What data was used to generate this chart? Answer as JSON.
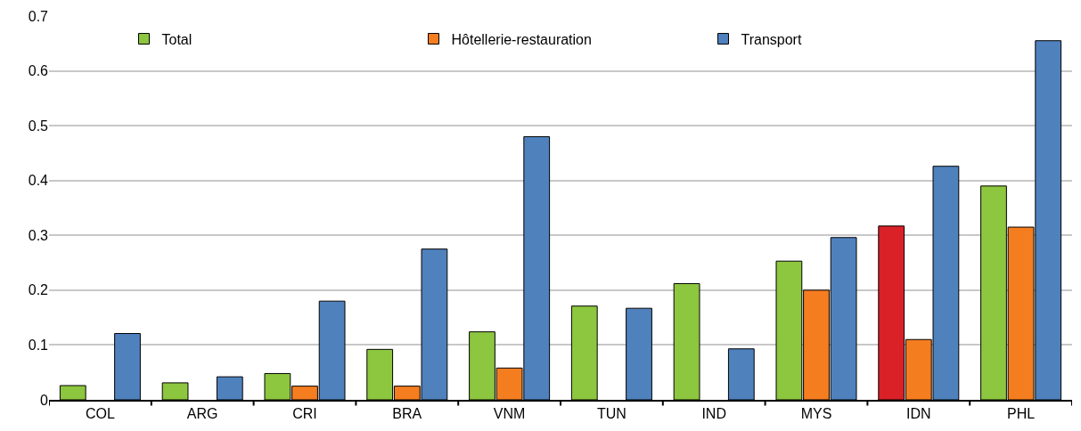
{
  "chart_data": {
    "type": "bar",
    "categories": [
      "COL",
      "ARG",
      "CRI",
      "BRA",
      "VNM",
      "TUN",
      "IND",
      "MYS",
      "IDN",
      "PHL"
    ],
    "series": [
      {
        "name": "Total",
        "color": "#8dc63f",
        "colors": [
          "#8dc63f",
          "#8dc63f",
          "#8dc63f",
          "#8dc63f",
          "#8dc63f",
          "#8dc63f",
          "#8dc63f",
          "#8dc63f",
          "#da2128",
          "#8dc63f"
        ],
        "values": [
          0.026,
          0.031,
          0.048,
          0.092,
          0.124,
          0.171,
          0.212,
          0.253,
          0.317,
          0.39
        ]
      },
      {
        "name": "Hôtellerie-restauration",
        "color": "#f47d20",
        "values": [
          null,
          null,
          0.025,
          0.025,
          0.058,
          null,
          null,
          0.2,
          0.11,
          0.315
        ]
      },
      {
        "name": "Transport",
        "color": "#4f81bd",
        "values": [
          0.121,
          0.042,
          0.18,
          0.275,
          0.48,
          0.167,
          0.093,
          0.296,
          0.426,
          0.655
        ]
      }
    ],
    "ylim": [
      0,
      0.7
    ],
    "yticks": [
      {
        "value": 0,
        "label": "0"
      },
      0.1,
      0.2,
      0.3,
      0.4,
      0.5,
      0.6,
      0.7
    ],
    "grid": "y",
    "legend": "top"
  }
}
